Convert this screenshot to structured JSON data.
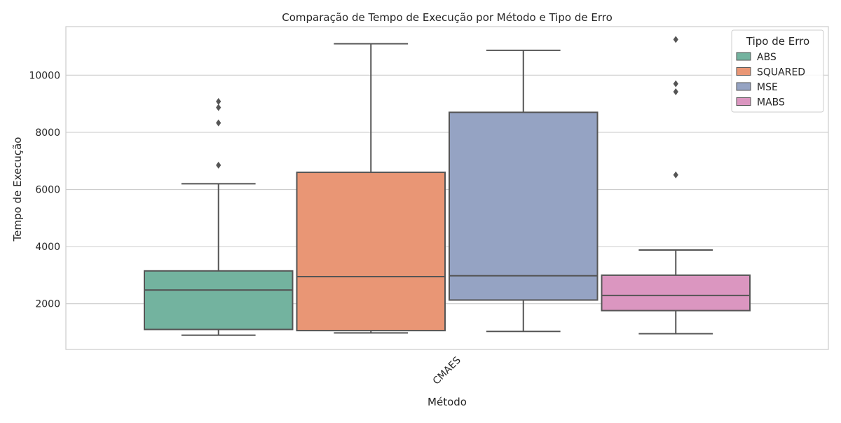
{
  "chart_data": {
    "type": "box",
    "title": "Comparação de Tempo de Execução por Método e Tipo de Erro",
    "xlabel": "Método",
    "ylabel": "Tempo de Execução",
    "categories": [
      "CMAES"
    ],
    "ylim": [
      400,
      11700
    ],
    "yticks": [
      2000,
      4000,
      6000,
      8000,
      10000
    ],
    "grid": true,
    "legend": {
      "title": "Tipo de Erro",
      "placement": "top-right"
    },
    "series": [
      {
        "name": "ABS",
        "color": "#73b39f",
        "whisker_low": 900,
        "q1": 1100,
        "median": 2480,
        "q3": 3150,
        "whisker_high": 6200,
        "outliers": [
          6850,
          8330,
          8870,
          9080
        ]
      },
      {
        "name": "SQUARED",
        "color": "#e99675",
        "whisker_low": 980,
        "q1": 1060,
        "median": 2950,
        "q3": 6600,
        "whisker_high": 11100,
        "outliers": []
      },
      {
        "name": "MSE",
        "color": "#95a3c3",
        "whisker_low": 1030,
        "q1": 2130,
        "median": 2980,
        "q3": 8700,
        "whisker_high": 10870,
        "outliers": []
      },
      {
        "name": "MABS",
        "color": "#db96c0",
        "whisker_low": 950,
        "q1": 1760,
        "median": 2290,
        "q3": 3000,
        "whisker_high": 3880,
        "outliers": [
          6510,
          9420,
          9700,
          11250
        ]
      }
    ]
  }
}
